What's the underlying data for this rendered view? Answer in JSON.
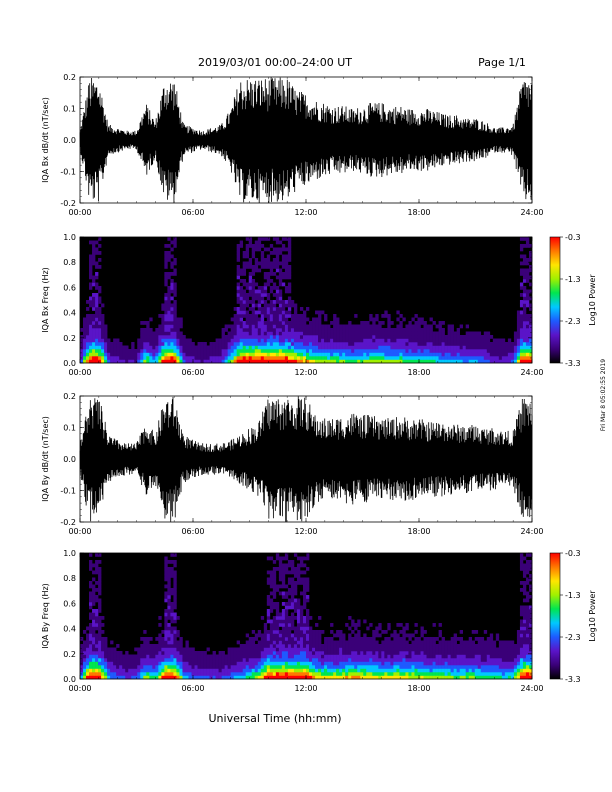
{
  "header": {
    "date_range": "2019/03/01   00:00–24:00 UT",
    "page": "Page 1/1"
  },
  "footer": {
    "xlabel": "Universal Time (hh:mm)"
  },
  "side_note": "Fri Mar  8 05:02:55 2019",
  "time_ticks": [
    "00:00",
    "06:00",
    "12:00",
    "18:00",
    "24:00"
  ],
  "colors": {
    "trace": "#000000",
    "colorbar": [
      "#000000",
      "#3a0078",
      "#5a14c8",
      "#1e5aff",
      "#00c8ff",
      "#00e650",
      "#a0f000",
      "#ffe600",
      "#ff7800",
      "#ff0000"
    ]
  },
  "chart_data": [
    {
      "type": "line",
      "ylabel": "IQA Bx dB/dt (nT/sec)",
      "ylim": [
        -0.2,
        0.2
      ],
      "yticks": [
        "-0.2",
        "-0.1",
        "0.0",
        "0.1",
        "0.2"
      ],
      "x": [
        0,
        0.5,
        1,
        1.5,
        2,
        2.5,
        3,
        3.5,
        4,
        4.5,
        5,
        5.5,
        6,
        6.5,
        7,
        7.5,
        8,
        8.5,
        9,
        9.5,
        10,
        10.5,
        11,
        11.5,
        12,
        12.5,
        13,
        13.5,
        14,
        14.5,
        15,
        15.5,
        16,
        16.5,
        17,
        17.5,
        18,
        18.5,
        19,
        19.5,
        20,
        20.5,
        21,
        21.5,
        22,
        22.5,
        23,
        23.5,
        24
      ],
      "amplitude": [
        0.03,
        0.2,
        0.2,
        0.05,
        0.04,
        0.03,
        0.03,
        0.12,
        0.06,
        0.2,
        0.2,
        0.05,
        0.04,
        0.03,
        0.04,
        0.05,
        0.1,
        0.2,
        0.2,
        0.2,
        0.2,
        0.2,
        0.2,
        0.16,
        0.15,
        0.13,
        0.12,
        0.11,
        0.11,
        0.1,
        0.11,
        0.12,
        0.12,
        0.11,
        0.11,
        0.1,
        0.1,
        0.1,
        0.09,
        0.08,
        0.08,
        0.07,
        0.07,
        0.06,
        0.04,
        0.04,
        0.05,
        0.2,
        0.2
      ]
    },
    {
      "type": "heatmap",
      "ylabel": "IQA Bx Freq (Hz)",
      "ylim": [
        0.0,
        1.0
      ],
      "yticks": [
        "0.0",
        "0.2",
        "0.4",
        "0.6",
        "0.8",
        "1.0"
      ],
      "colorbar_label": "Log10 Power",
      "colorbar_ticks": [
        "-0.3",
        "-1.3",
        "-2.3",
        "-3.3"
      ],
      "zlim": [
        -3.3,
        -0.3
      ]
    },
    {
      "type": "line",
      "ylabel": "IQA By dB/dt (nT/sec)",
      "ylim": [
        -0.2,
        0.2
      ],
      "yticks": [
        "-0.2",
        "-0.1",
        "0.0",
        "0.1",
        "0.2"
      ],
      "x": [
        0,
        0.5,
        1,
        1.5,
        2,
        2.5,
        3,
        3.5,
        4,
        4.5,
        5,
        5.5,
        6,
        6.5,
        7,
        7.5,
        8,
        8.5,
        9,
        9.5,
        10,
        10.5,
        11,
        11.5,
        12,
        12.5,
        13,
        13.5,
        14,
        14.5,
        15,
        15.5,
        16,
        16.5,
        17,
        17.5,
        18,
        18.5,
        19,
        19.5,
        20,
        20.5,
        21,
        21.5,
        22,
        22.5,
        23,
        23.5,
        24
      ],
      "amplitude": [
        0.05,
        0.2,
        0.2,
        0.08,
        0.06,
        0.05,
        0.05,
        0.12,
        0.08,
        0.2,
        0.2,
        0.08,
        0.06,
        0.05,
        0.05,
        0.05,
        0.06,
        0.08,
        0.1,
        0.12,
        0.2,
        0.2,
        0.2,
        0.2,
        0.2,
        0.14,
        0.13,
        0.13,
        0.14,
        0.15,
        0.14,
        0.14,
        0.13,
        0.13,
        0.14,
        0.13,
        0.13,
        0.12,
        0.12,
        0.12,
        0.11,
        0.11,
        0.11,
        0.1,
        0.1,
        0.09,
        0.09,
        0.2,
        0.2
      ]
    },
    {
      "type": "heatmap",
      "ylabel": "IQA By Freq (Hz)",
      "ylim": [
        0.0,
        1.0
      ],
      "yticks": [
        "0.0",
        "0.2",
        "0.4",
        "0.6",
        "0.8",
        "1.0"
      ],
      "colorbar_label": "Log10 Power",
      "colorbar_ticks": [
        "-0.3",
        "-1.3",
        "-2.3",
        "-3.3"
      ],
      "zlim": [
        -3.3,
        -0.3
      ]
    }
  ]
}
